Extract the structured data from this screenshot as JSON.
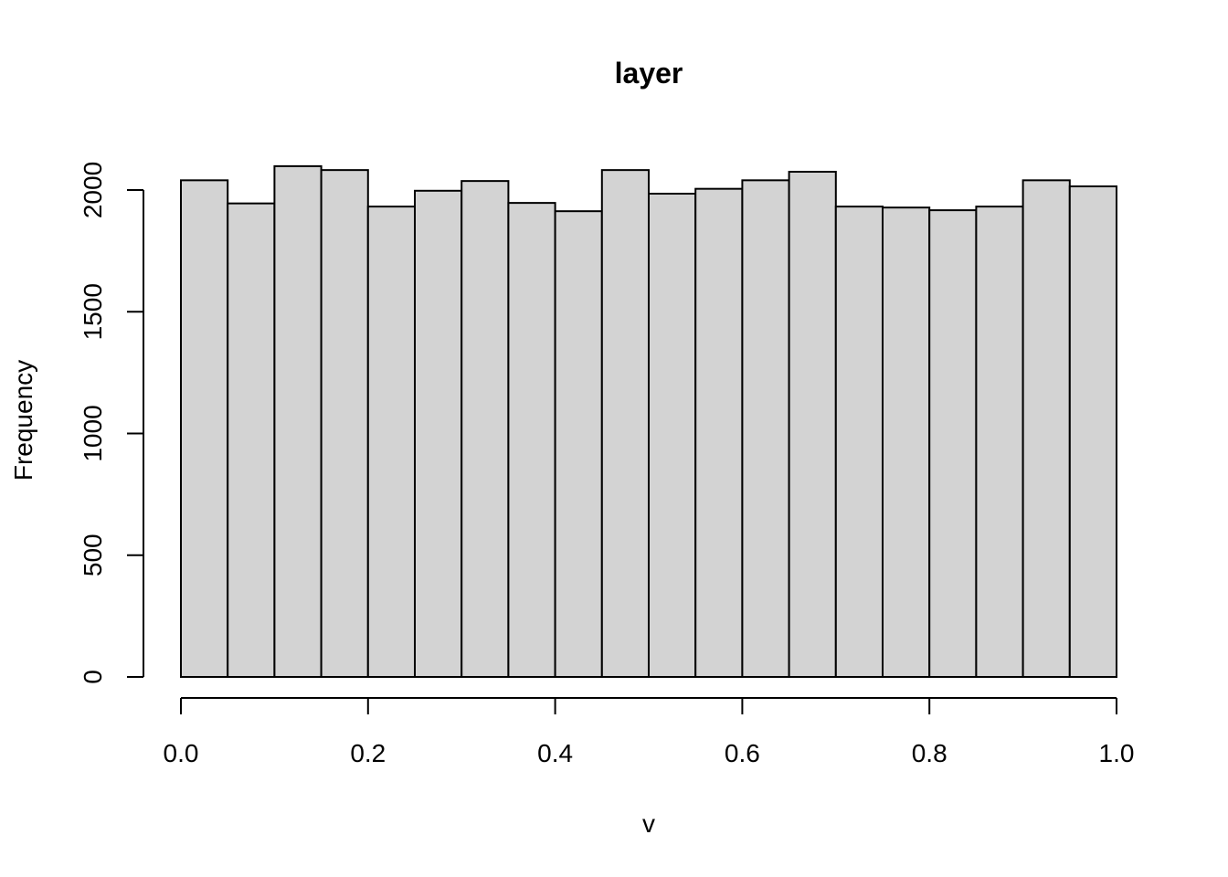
{
  "chart_data": {
    "type": "bar",
    "title": "layer",
    "xlabel": "v",
    "ylabel": "Frequency",
    "bin_edges": [
      0.0,
      0.05,
      0.1,
      0.15,
      0.2,
      0.25,
      0.3,
      0.35,
      0.4,
      0.45,
      0.5,
      0.55,
      0.6,
      0.65,
      0.7,
      0.75,
      0.8,
      0.85,
      0.9,
      0.95,
      1.0
    ],
    "values": [
      2040,
      1945,
      2098,
      2082,
      1932,
      1997,
      2037,
      1947,
      1913,
      2082,
      1985,
      2005,
      2040,
      2075,
      1932,
      1928,
      1917,
      1932,
      2040,
      2015
    ],
    "xlim": [
      0.0,
      1.0
    ],
    "ylim": [
      0,
      2000
    ],
    "xticks": [
      0.0,
      0.2,
      0.4,
      0.6,
      0.8,
      1.0
    ],
    "xtick_labels": [
      "0.0",
      "0.2",
      "0.4",
      "0.6",
      "0.8",
      "1.0"
    ],
    "yticks": [
      0,
      500,
      1000,
      1500,
      2000
    ],
    "ytick_labels": [
      "0",
      "500",
      "1000",
      "1500",
      "2000"
    ],
    "grid": false,
    "bar_fill": "#d3d3d3",
    "bar_stroke": "#000000"
  }
}
